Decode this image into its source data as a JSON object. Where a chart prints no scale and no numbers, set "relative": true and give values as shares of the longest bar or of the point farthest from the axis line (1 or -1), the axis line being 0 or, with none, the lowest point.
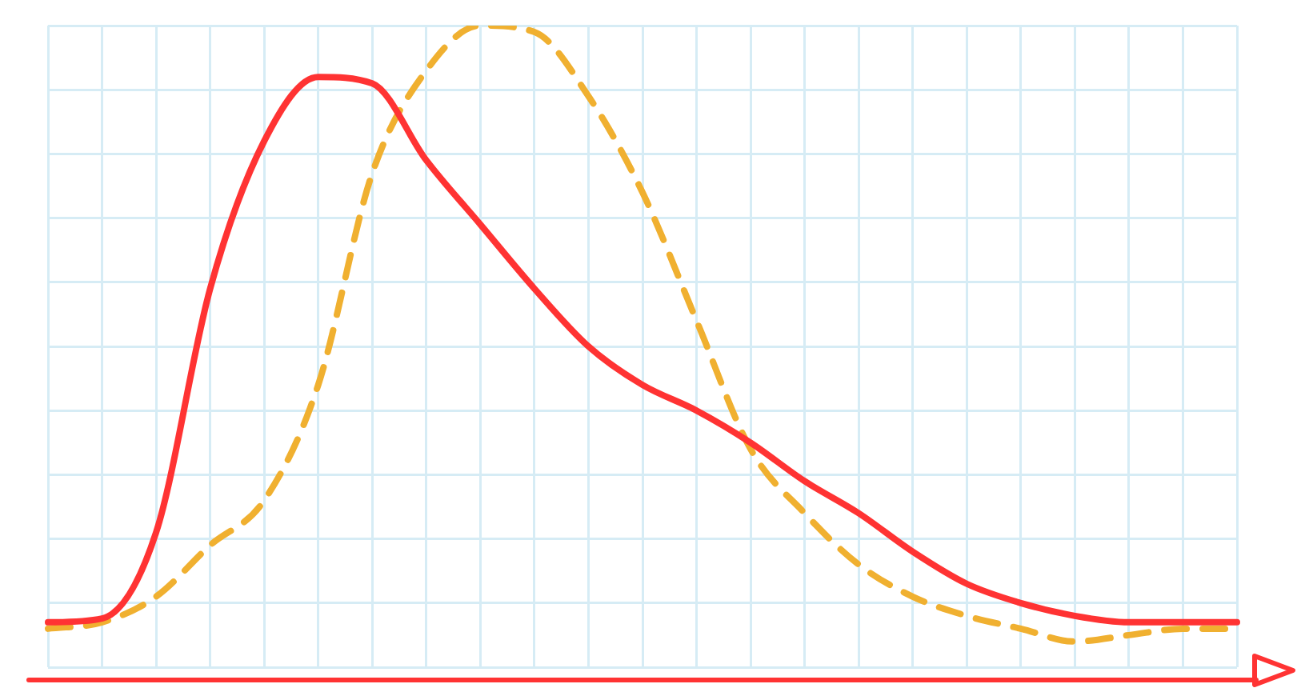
{
  "chart_data": {
    "type": "line",
    "relative": true,
    "grid": true,
    "legend": false,
    "marker": "none",
    "categories": [
      null,
      null,
      null,
      null,
      null,
      null,
      null,
      null,
      null,
      null,
      null,
      null,
      null,
      null,
      null,
      null,
      null,
      null,
      null,
      null,
      null,
      null,
      null
    ],
    "series": [
      {
        "color": "#ff3333",
        "line_style": "solid",
        "values": [
          0.07,
          0.076,
          0.21,
          0.59,
          0.82,
          0.92,
          0.91,
          0.79,
          0.69,
          0.59,
          0.5,
          0.44,
          0.4,
          0.35,
          0.29,
          0.24,
          0.18,
          0.13,
          0.1,
          0.08,
          0.07,
          0.07,
          0.07
        ]
      },
      {
        "color": "#f0b030",
        "line_style": "dashed",
        "values": [
          0.06,
          0.07,
          0.11,
          0.19,
          0.26,
          0.44,
          0.77,
          0.93,
          1,
          0.99,
          0.89,
          0.74,
          0.54,
          0.34,
          0.24,
          0.16,
          0.11,
          0.08,
          0.06,
          0.04,
          0.05,
          0.06,
          0.06
        ]
      }
    ]
  }
}
